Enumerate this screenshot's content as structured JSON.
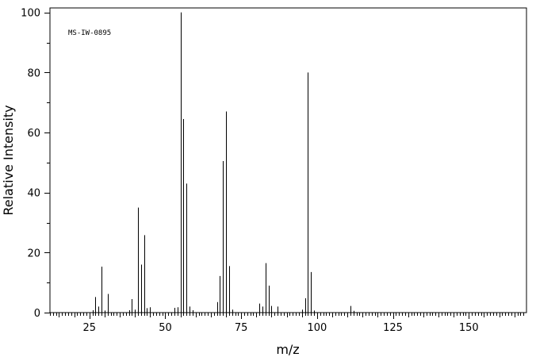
{
  "chart_data": {
    "type": "bar",
    "title": "",
    "annotation": "MS-IW-0895",
    "xlabel": "m/z",
    "ylabel": "Relative Intensity",
    "xlim": [
      10,
      170
    ],
    "ylim": [
      0,
      105
    ],
    "x_ticks": [
      25,
      50,
      75,
      100,
      125,
      150
    ],
    "y_ticks": [
      0,
      20,
      40,
      60,
      80,
      100
    ],
    "grid": false,
    "legend": "none",
    "bar_color": "#000000",
    "peaks": [
      {
        "mz": 26,
        "intensity": 0.8
      },
      {
        "mz": 27,
        "intensity": 5.2
      },
      {
        "mz": 28,
        "intensity": 2.0
      },
      {
        "mz": 29,
        "intensity": 15.3
      },
      {
        "mz": 30,
        "intensity": 0.7
      },
      {
        "mz": 31,
        "intensity": 6.2
      },
      {
        "mz": 38,
        "intensity": 0.8
      },
      {
        "mz": 39,
        "intensity": 4.5
      },
      {
        "mz": 40,
        "intensity": 1.0
      },
      {
        "mz": 41,
        "intensity": 35.0
      },
      {
        "mz": 42,
        "intensity": 16.0
      },
      {
        "mz": 43,
        "intensity": 25.8
      },
      {
        "mz": 44,
        "intensity": 1.5
      },
      {
        "mz": 45,
        "intensity": 1.8
      },
      {
        "mz": 53,
        "intensity": 1.6
      },
      {
        "mz": 54,
        "intensity": 1.8
      },
      {
        "mz": 55,
        "intensity": 100.0
      },
      {
        "mz": 56,
        "intensity": 64.5
      },
      {
        "mz": 57,
        "intensity": 43.0
      },
      {
        "mz": 58,
        "intensity": 2.0
      },
      {
        "mz": 59,
        "intensity": 0.8
      },
      {
        "mz": 67,
        "intensity": 3.5
      },
      {
        "mz": 68,
        "intensity": 12.2
      },
      {
        "mz": 69,
        "intensity": 50.5
      },
      {
        "mz": 70,
        "intensity": 67.0
      },
      {
        "mz": 71,
        "intensity": 15.5
      },
      {
        "mz": 72,
        "intensity": 1.0
      },
      {
        "mz": 81,
        "intensity": 3.0
      },
      {
        "mz": 82,
        "intensity": 2.0
      },
      {
        "mz": 83,
        "intensity": 16.5
      },
      {
        "mz": 84,
        "intensity": 9.0
      },
      {
        "mz": 85,
        "intensity": 2.2
      },
      {
        "mz": 87,
        "intensity": 2.0
      },
      {
        "mz": 95,
        "intensity": 1.0
      },
      {
        "mz": 96,
        "intensity": 4.8
      },
      {
        "mz": 97,
        "intensity": 80.0
      },
      {
        "mz": 98,
        "intensity": 13.5
      },
      {
        "mz": 99,
        "intensity": 0.7
      },
      {
        "mz": 111,
        "intensity": 2.2
      },
      {
        "mz": 112,
        "intensity": 0.6
      }
    ]
  }
}
